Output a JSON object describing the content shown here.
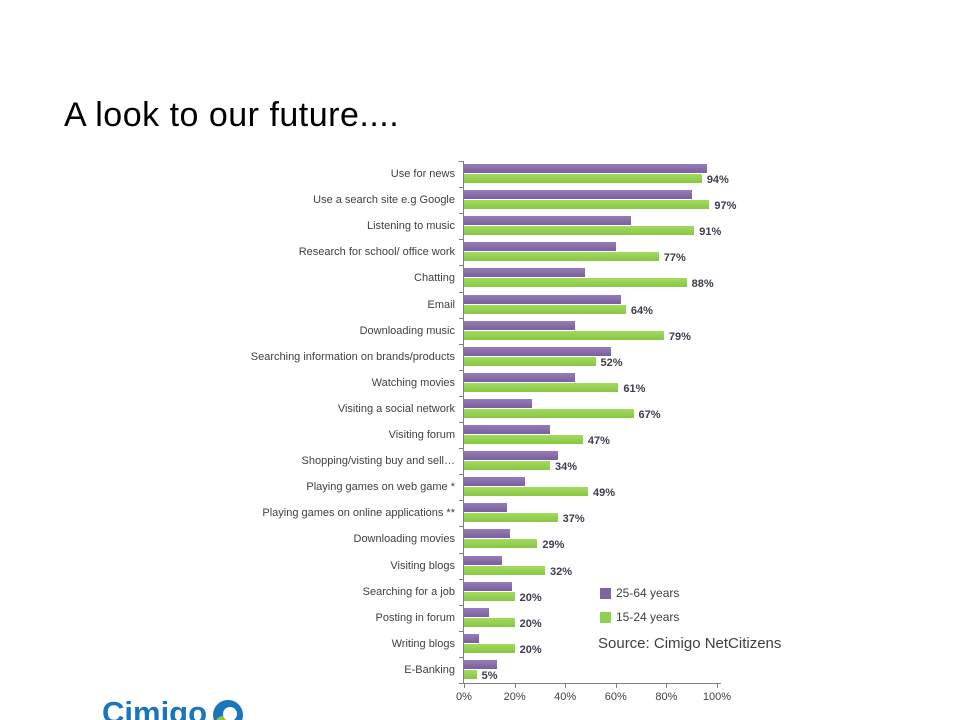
{
  "slide": {
    "title": "A look to our future....",
    "source": "Source: Cimigo NetCitizens",
    "logo_text": "Cimigo"
  },
  "legend": {
    "items": [
      {
        "label": "25-64 years",
        "color": "#8064A2"
      },
      {
        "label": "15-24 years",
        "color": "#92D050"
      }
    ]
  },
  "chart_data": {
    "type": "bar",
    "orientation": "horizontal",
    "title": "",
    "xlabel": "",
    "ylabel": "",
    "xlim": [
      0,
      100
    ],
    "x_ticks": [
      "0%",
      "20%",
      "40%",
      "60%",
      "80%",
      "100%"
    ],
    "x_tick_values": [
      0,
      20,
      40,
      60,
      80,
      100
    ],
    "grid": false,
    "legend_position": "inside-bottom-right",
    "categories": [
      "Use for news",
      "Use a search site e.g Google",
      "Listening to music",
      "Research for school/ office work",
      "Chatting",
      "Email",
      "Downloading music",
      "Searching information on brands/products",
      "Watching movies",
      "Visiting a social network",
      "Visiting forum",
      "Shopping/visting buy and sell…",
      "Playing games on web game *",
      "Playing games on online applications **",
      "Downloading movies",
      "Visiting blogs",
      "Searching for a job",
      "Posting in forum",
      "Writing blogs",
      "E-Banking"
    ],
    "series": [
      {
        "name": "25-64 years",
        "color": "#8064A2",
        "values": [
          96,
          90,
          66,
          60,
          48,
          62,
          44,
          58,
          44,
          27,
          34,
          37,
          24,
          17,
          18,
          15,
          19,
          10,
          6,
          13
        ],
        "values_note": "estimated from bar lengths; not labeled in chart"
      },
      {
        "name": "15-24 years",
        "color": "#92D050",
        "values": [
          94,
          97,
          91,
          77,
          88,
          64,
          79,
          52,
          61,
          67,
          47,
          34,
          49,
          37,
          29,
          32,
          20,
          20,
          20,
          5
        ],
        "data_labels": [
          "94%",
          "97%",
          "91%",
          "77%",
          "88%",
          "64%",
          "79%",
          "52%",
          "61%",
          "67%",
          "47%",
          "34%",
          "49%",
          "37%",
          "29%",
          "32%",
          "20%",
          "20%",
          "20%",
          "5%"
        ]
      }
    ]
  }
}
